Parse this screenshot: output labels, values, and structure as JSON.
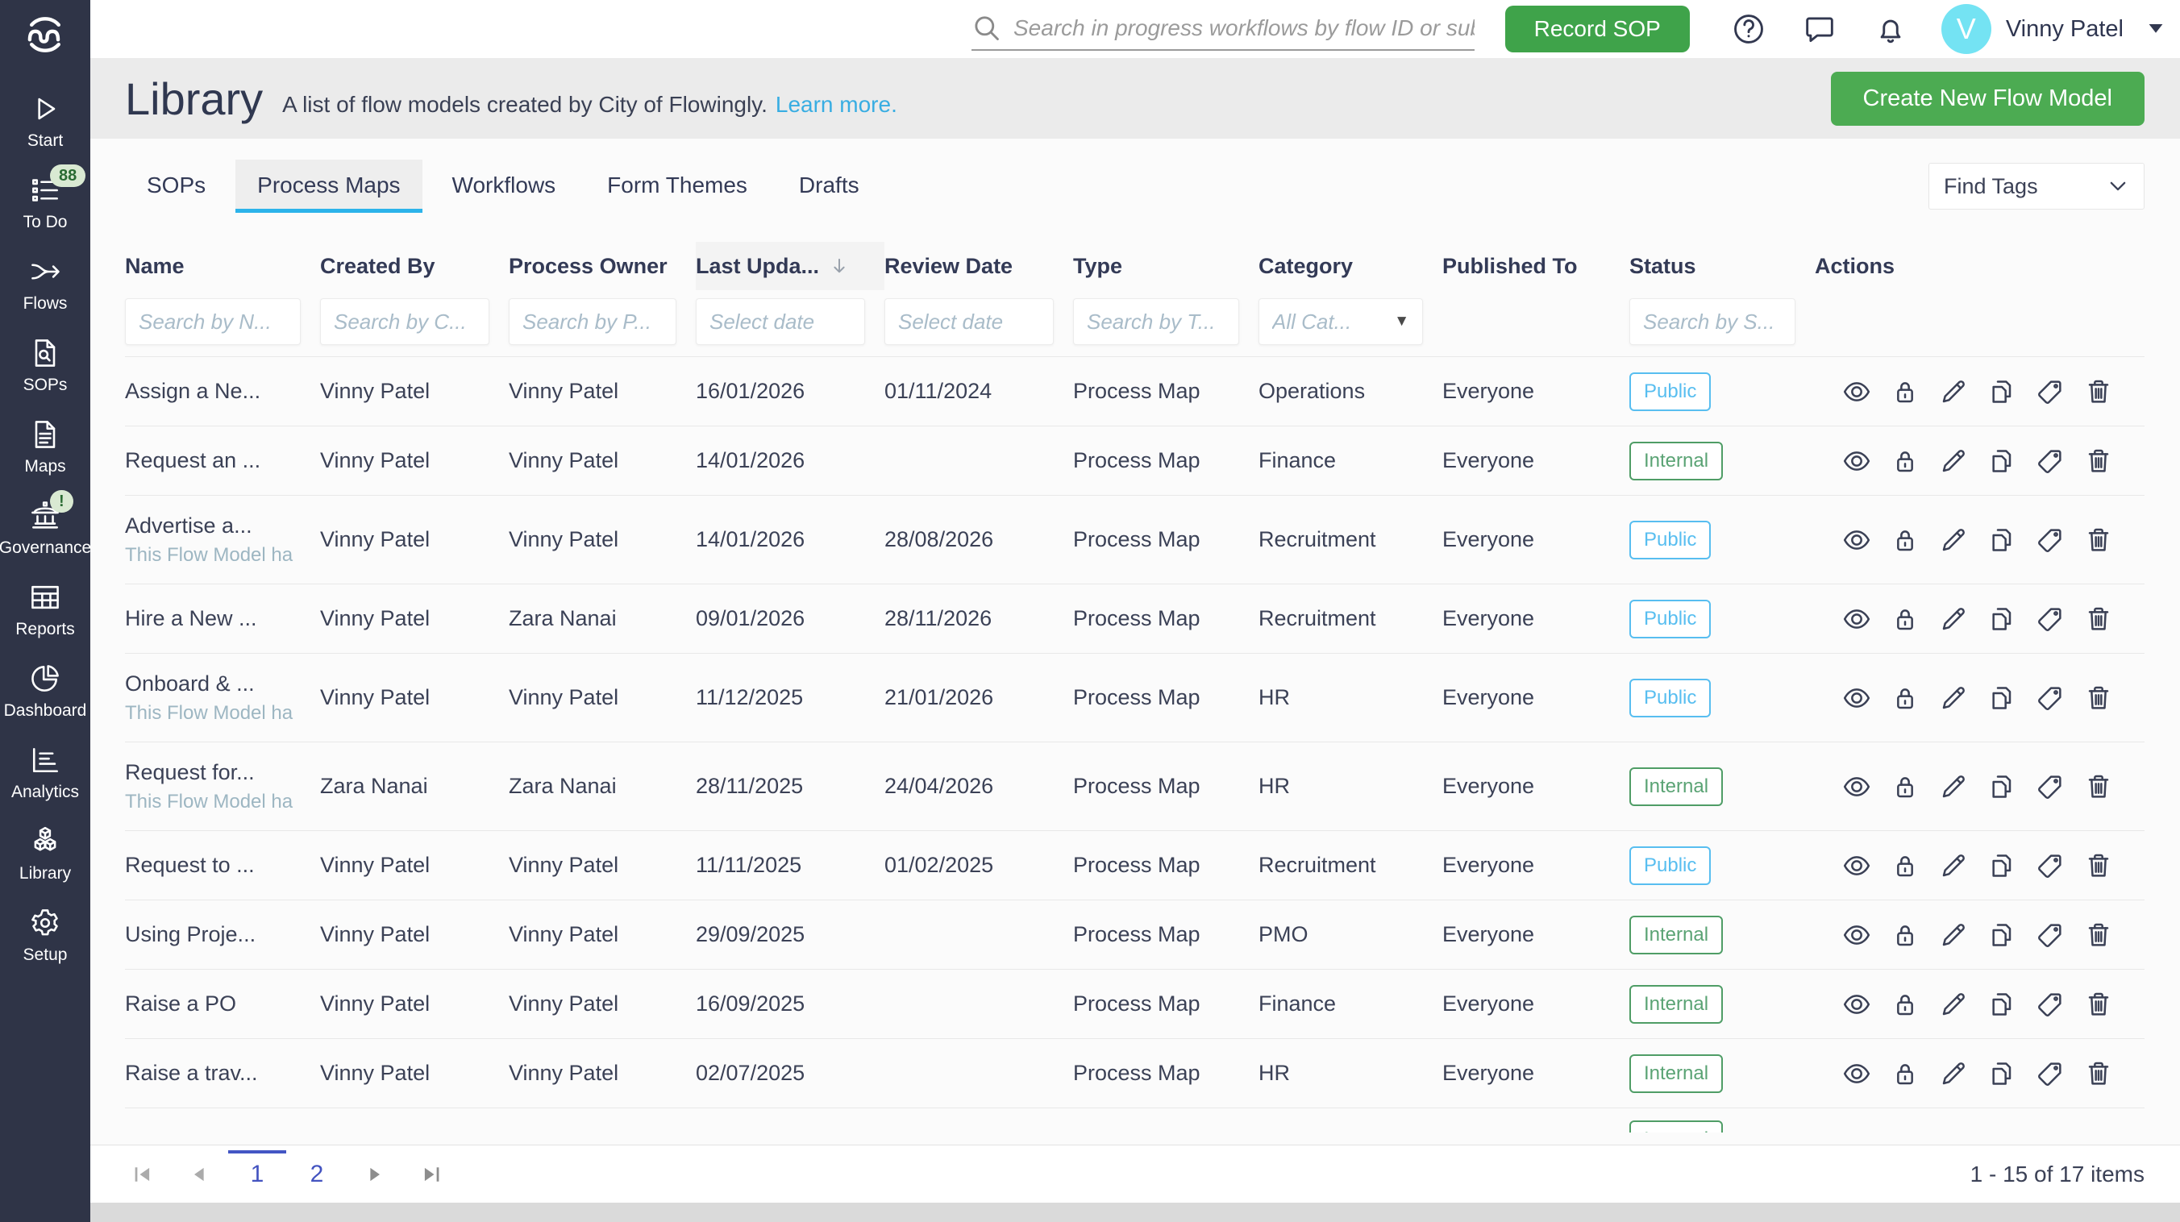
{
  "topbar": {
    "search_placeholder": "Search in progress workflows by flow ID or subject",
    "record_sop_label": "Record SOP",
    "icons": [
      "help-icon",
      "chat-icon",
      "bell-icon"
    ],
    "avatar_initial": "V",
    "user_name": "Vinny Patel"
  },
  "sidebar": {
    "logo": "flowingly-logo",
    "items": [
      {
        "label": "Start",
        "icon": "start-icon"
      },
      {
        "label": "To Do",
        "icon": "todo-icon",
        "badge": "88"
      },
      {
        "label": "Flows",
        "icon": "flows-icon"
      },
      {
        "label": "SOPs",
        "icon": "sops-icon"
      },
      {
        "label": "Maps",
        "icon": "maps-icon"
      },
      {
        "label": "Governance",
        "icon": "governance-icon",
        "badge": "!"
      },
      {
        "label": "Reports",
        "icon": "reports-icon"
      },
      {
        "label": "Dashboard",
        "icon": "dashboard-icon"
      },
      {
        "label": "Analytics",
        "icon": "analytics-icon"
      },
      {
        "label": "Library",
        "icon": "library-icon"
      },
      {
        "label": "Setup",
        "icon": "setup-icon"
      }
    ]
  },
  "header": {
    "title": "Library",
    "subtitle": "A list of flow models created by City of Flowingly.",
    "learn_more_label": "Learn more.",
    "create_button_label": "Create New Flow Model"
  },
  "tabs": {
    "active": "Process Maps",
    "items": [
      "SOPs",
      "Process Maps",
      "Workflows",
      "Form Themes",
      "Drafts"
    ]
  },
  "toolbar": {
    "find_tags_label": "Find Tags"
  },
  "table": {
    "columns": [
      {
        "label": "Name",
        "filter": "Search by N...",
        "filter_type": "text"
      },
      {
        "label": "Created By",
        "filter": "Search by C...",
        "filter_type": "text"
      },
      {
        "label": "Process Owner",
        "filter": "Search by P...",
        "filter_type": "text"
      },
      {
        "label": "Last Upda...",
        "filter": "Select date",
        "filter_type": "date",
        "sorted": true
      },
      {
        "label": "Review Date",
        "filter": "Select date",
        "filter_type": "date"
      },
      {
        "label": "Type",
        "filter": "Search by T...",
        "filter_type": "text"
      },
      {
        "label": "Category",
        "filter": "All Cat...",
        "filter_type": "select"
      },
      {
        "label": "Published To",
        "filter": null,
        "filter_type": "none"
      },
      {
        "label": "Status",
        "filter": "Search by S...",
        "filter_type": "text"
      },
      {
        "label": "Actions",
        "filter": null,
        "filter_type": "none"
      }
    ],
    "action_icons": [
      "view",
      "lock",
      "edit",
      "copy",
      "tag",
      "delete"
    ],
    "rows": [
      {
        "name": "Assign a Ne...",
        "created_by": "Vinny Patel",
        "process_owner": "Vinny Patel",
        "last_updated": "16/01/2026",
        "review_date": "01/11/2024",
        "type": "Process Map",
        "category": "Operations",
        "published_to": "Everyone",
        "status": "Public"
      },
      {
        "name": "Request an ...",
        "created_by": "Vinny Patel",
        "process_owner": "Vinny Patel",
        "last_updated": "14/01/2026",
        "review_date": "",
        "type": "Process Map",
        "category": "Finance",
        "published_to": "Everyone",
        "status": "Internal"
      },
      {
        "name": "Advertise a...",
        "note": "This Flow Model ha",
        "created_by": "Vinny Patel",
        "process_owner": "Vinny Patel",
        "last_updated": "14/01/2026",
        "review_date": "28/08/2026",
        "type": "Process Map",
        "category": "Recruitment",
        "published_to": "Everyone",
        "status": "Public"
      },
      {
        "name": "Hire a New ...",
        "created_by": "Vinny Patel",
        "process_owner": "Zara Nanai",
        "last_updated": "09/01/2026",
        "review_date": "28/11/2026",
        "type": "Process Map",
        "category": "Recruitment",
        "published_to": "Everyone",
        "status": "Public"
      },
      {
        "name": "Onboard & ...",
        "note": "This Flow Model ha",
        "created_by": "Vinny Patel",
        "process_owner": "Vinny Patel",
        "last_updated": "11/12/2025",
        "review_date": "21/01/2026",
        "type": "Process Map",
        "category": "HR",
        "published_to": "Everyone",
        "status": "Public"
      },
      {
        "name": "Request for...",
        "note": "This Flow Model ha",
        "created_by": "Zara Nanai",
        "process_owner": "Zara Nanai",
        "last_updated": "28/11/2025",
        "review_date": "24/04/2026",
        "type": "Process Map",
        "category": "HR",
        "published_to": "Everyone",
        "status": "Internal"
      },
      {
        "name": "Request to ...",
        "created_by": "Vinny Patel",
        "process_owner": "Vinny Patel",
        "last_updated": "11/11/2025",
        "review_date": "01/02/2025",
        "type": "Process Map",
        "category": "Recruitment",
        "published_to": "Everyone",
        "status": "Public"
      },
      {
        "name": "Using Proje...",
        "created_by": "Vinny Patel",
        "process_owner": "Vinny Patel",
        "last_updated": "29/09/2025",
        "review_date": "",
        "type": "Process Map",
        "category": "PMO",
        "published_to": "Everyone",
        "status": "Internal"
      },
      {
        "name": "Raise a PO",
        "created_by": "Vinny Patel",
        "process_owner": "Vinny Patel",
        "last_updated": "16/09/2025",
        "review_date": "",
        "type": "Process Map",
        "category": "Finance",
        "published_to": "Everyone",
        "status": "Internal"
      },
      {
        "name": "Raise a trav...",
        "created_by": "Vinny Patel",
        "process_owner": "Vinny Patel",
        "last_updated": "02/07/2025",
        "review_date": "",
        "type": "Process Map",
        "category": "HR",
        "published_to": "Everyone",
        "status": "Internal"
      },
      {
        "name": "",
        "created_by": "",
        "process_owner": "",
        "last_updated": "",
        "review_date": "",
        "type": "",
        "category": "",
        "published_to": "",
        "status": "Internal",
        "partial": true
      }
    ]
  },
  "pagination": {
    "pages": [
      "1",
      "2"
    ],
    "active_page": "1",
    "summary": "1 - 15 of 17 items"
  },
  "colors": {
    "sidebar_bg": "#2f3447",
    "green_button": "#4cab52",
    "tab_underline": "#2cb3ea",
    "link_blue": "#38ade2",
    "badge_public": "#58bef0",
    "badge_internal": "#4f9d66",
    "avatar_bg": "#74e3f3",
    "pagination_blue": "#4353c0",
    "sidebar_badge_bg": "#d9e9d2",
    "sidebar_badge_text": "#2a6b33"
  }
}
